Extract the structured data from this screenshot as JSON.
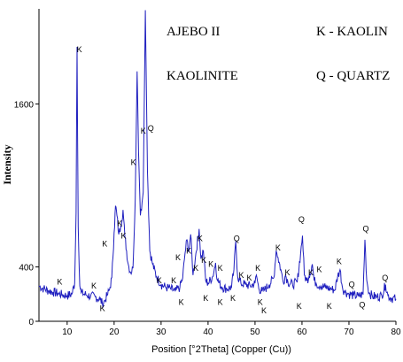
{
  "chart_data": {
    "type": "line",
    "xlabel": "Position [°2Theta] (Copper (Cu))",
    "ylabel": "Intensity",
    "xlim": [
      4,
      80
    ],
    "ylim": [
      0,
      2300
    ],
    "x_ticks": [
      10,
      20,
      30,
      40,
      50,
      60,
      70,
      80
    ],
    "y_ticks": [
      0,
      400,
      1600
    ],
    "grid": false,
    "legend": "none",
    "line_color": "#1f1fbf",
    "annotations": [
      "AJEBO II",
      "KAOLINITE",
      "K - KAOLIN",
      "Q - QUARTZ"
    ],
    "series": [
      {
        "points": [
          [
            4,
            260
          ],
          [
            5,
            240
          ],
          [
            6,
            225
          ],
          [
            7,
            215
          ],
          [
            8,
            205
          ],
          [
            9,
            195
          ],
          [
            10,
            188
          ],
          [
            11,
            200
          ],
          [
            11.6,
            280
          ],
          [
            11.9,
            800
          ],
          [
            12.1,
            2020
          ],
          [
            12.35,
            700
          ],
          [
            12.7,
            260
          ],
          [
            13,
            210
          ],
          [
            14,
            195
          ],
          [
            15,
            185
          ],
          [
            16,
            180
          ],
          [
            17,
            160
          ],
          [
            17.5,
            130
          ],
          [
            18,
            150
          ],
          [
            18.5,
            190
          ],
          [
            19,
            230
          ],
          [
            19.5,
            320
          ],
          [
            20,
            650
          ],
          [
            20.3,
            850
          ],
          [
            20.6,
            780
          ],
          [
            21,
            640
          ],
          [
            21.4,
            700
          ],
          [
            21.9,
            820
          ],
          [
            22.3,
            620
          ],
          [
            23,
            420
          ],
          [
            23.5,
            360
          ],
          [
            24,
            390
          ],
          [
            24.5,
            900
          ],
          [
            24.9,
            1840
          ],
          [
            25.2,
            1250
          ],
          [
            25.6,
            780
          ],
          [
            26.2,
            950
          ],
          [
            26.65,
            2290
          ],
          [
            27.1,
            1100
          ],
          [
            27.6,
            520
          ],
          [
            28.2,
            420
          ],
          [
            29,
            330
          ],
          [
            30,
            270
          ],
          [
            31,
            250
          ],
          [
            32,
            240
          ],
          [
            33,
            220
          ],
          [
            34,
            250
          ],
          [
            34.6,
            320
          ],
          [
            35.1,
            500
          ],
          [
            35.5,
            600
          ],
          [
            35.9,
            520
          ],
          [
            36.3,
            640
          ],
          [
            36.8,
            340
          ],
          [
            37.3,
            470
          ],
          [
            38.1,
            680
          ],
          [
            38.5,
            460
          ],
          [
            39,
            520
          ],
          [
            39.5,
            300
          ],
          [
            40,
            280
          ],
          [
            41,
            330
          ],
          [
            41.6,
            430
          ],
          [
            42,
            300
          ],
          [
            43,
            250
          ],
          [
            44,
            240
          ],
          [
            45,
            250
          ],
          [
            45.5,
            380
          ],
          [
            45.9,
            590
          ],
          [
            46.3,
            330
          ],
          [
            47,
            280
          ],
          [
            48,
            270
          ],
          [
            49,
            260
          ],
          [
            50,
            280
          ],
          [
            50.3,
            340
          ],
          [
            50.8,
            240
          ],
          [
            51.5,
            220
          ],
          [
            52,
            230
          ],
          [
            53,
            270
          ],
          [
            54,
            320
          ],
          [
            54.5,
            520
          ],
          [
            54.9,
            470
          ],
          [
            55.5,
            380
          ],
          [
            56,
            290
          ],
          [
            56.5,
            340
          ],
          [
            57,
            290
          ],
          [
            58,
            270
          ],
          [
            59,
            290
          ],
          [
            59.7,
            500
          ],
          [
            60.1,
            630
          ],
          [
            60.5,
            340
          ],
          [
            61,
            300
          ],
          [
            61.5,
            330
          ],
          [
            62.2,
            420
          ],
          [
            62.6,
            300
          ],
          [
            63,
            280
          ],
          [
            64,
            260
          ],
          [
            65,
            250
          ],
          [
            66,
            240
          ],
          [
            67,
            230
          ],
          [
            67.6,
            330
          ],
          [
            68.1,
            380
          ],
          [
            68.6,
            250
          ],
          [
            69,
            220
          ],
          [
            70,
            200
          ],
          [
            71,
            190
          ],
          [
            72,
            185
          ],
          [
            73,
            200
          ],
          [
            73.4,
            600
          ],
          [
            73.8,
            300
          ],
          [
            74.3,
            210
          ],
          [
            75,
            185
          ],
          [
            76,
            180
          ],
          [
            77,
            190
          ],
          [
            77.8,
            270
          ],
          [
            78.3,
            190
          ],
          [
            79,
            170
          ],
          [
            80,
            165
          ]
        ]
      }
    ],
    "peak_markers": [
      {
        "x": 12.6,
        "y": 1980,
        "label": "K"
      },
      {
        "x": 8.4,
        "y": 270,
        "label": "K"
      },
      {
        "x": 15.7,
        "y": 240,
        "label": "K"
      },
      {
        "x": 17.5,
        "y": 75,
        "label": "K"
      },
      {
        "x": 18.0,
        "y": 550,
        "label": "K"
      },
      {
        "x": 21.2,
        "y": 700,
        "label": "K"
      },
      {
        "x": 22.0,
        "y": 610,
        "label": "K"
      },
      {
        "x": 24.1,
        "y": 1150,
        "label": "K"
      },
      {
        "x": 26.2,
        "y": 1380,
        "label": "K"
      },
      {
        "x": 27.8,
        "y": 1400,
        "label": "Q"
      },
      {
        "x": 29.6,
        "y": 280,
        "label": "K"
      },
      {
        "x": 32.7,
        "y": 280,
        "label": "K"
      },
      {
        "x": 33.6,
        "y": 450,
        "label": "K"
      },
      {
        "x": 34.3,
        "y": 120,
        "label": "K"
      },
      {
        "x": 35.9,
        "y": 500,
        "label": "K"
      },
      {
        "x": 37.4,
        "y": 370,
        "label": "K"
      },
      {
        "x": 38.3,
        "y": 590,
        "label": "K"
      },
      {
        "x": 39.1,
        "y": 430,
        "label": "K"
      },
      {
        "x": 39.5,
        "y": 150,
        "label": "K"
      },
      {
        "x": 40.6,
        "y": 400,
        "label": "K"
      },
      {
        "x": 42.6,
        "y": 370,
        "label": "K"
      },
      {
        "x": 42.6,
        "y": 120,
        "label": "K"
      },
      {
        "x": 45.3,
        "y": 150,
        "label": "K"
      },
      {
        "x": 46.1,
        "y": 590,
        "label": "Q"
      },
      {
        "x": 47.1,
        "y": 320,
        "label": "K"
      },
      {
        "x": 48.8,
        "y": 300,
        "label": "K"
      },
      {
        "x": 50.6,
        "y": 370,
        "label": "K"
      },
      {
        "x": 51.1,
        "y": 120,
        "label": "K"
      },
      {
        "x": 51.9,
        "y": 60,
        "label": "K"
      },
      {
        "x": 54.9,
        "y": 520,
        "label": "K"
      },
      {
        "x": 56.9,
        "y": 340,
        "label": "K"
      },
      {
        "x": 59.4,
        "y": 90,
        "label": "K"
      },
      {
        "x": 59.9,
        "y": 730,
        "label": "Q"
      },
      {
        "x": 61.9,
        "y": 340,
        "label": "K"
      },
      {
        "x": 63.7,
        "y": 360,
        "label": "K"
      },
      {
        "x": 65.8,
        "y": 90,
        "label": "K"
      },
      {
        "x": 67.9,
        "y": 420,
        "label": "K"
      },
      {
        "x": 70.6,
        "y": 250,
        "label": "Q"
      },
      {
        "x": 72.8,
        "y": 100,
        "label": "Q"
      },
      {
        "x": 73.6,
        "y": 660,
        "label": "Q"
      },
      {
        "x": 77.7,
        "y": 300,
        "label": "Q"
      }
    ]
  }
}
